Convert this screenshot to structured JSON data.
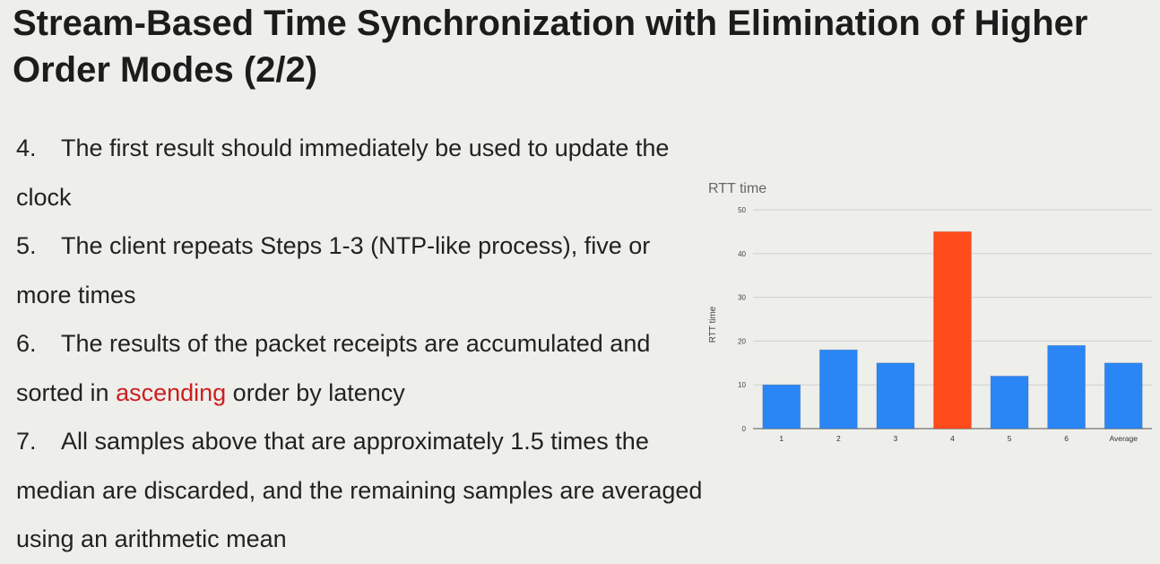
{
  "slide": {
    "title": "Stream-Based Time Synchronization with Elimination of Higher Order Modes (2/2)",
    "points": [
      {
        "num": "4.",
        "text": "The first result should immediately be used to update the clock"
      },
      {
        "num": "5.",
        "text": "The client repeats Steps 1-3 (NTP-like process), five or more times"
      },
      {
        "num": "6.",
        "text_before": "The results of the packet receipts are accumulated and sorted in ",
        "highlight": "ascending",
        "text_after": " order by latency"
      },
      {
        "num": "7.",
        "text": "All samples above that are approximately 1.5 times the median are discarded, and the remaining samples are averaged using an arithmetic mean"
      }
    ],
    "colors": {
      "highlight": "#cc1f1f",
      "background": "#eeeeea"
    }
  },
  "chart_data": {
    "type": "bar",
    "title": "RTT time",
    "ylabel": "RTT time",
    "xlabel": "",
    "categories": [
      "1",
      "2",
      "3",
      "4",
      "5",
      "6",
      "Average"
    ],
    "values": [
      10,
      18,
      15,
      45,
      12,
      19,
      15
    ],
    "ylim": [
      0,
      50
    ],
    "yticks": [
      0,
      10,
      20,
      30,
      40,
      50
    ],
    "grid": true,
    "bar_colors": [
      "#2b86f5",
      "#2b86f5",
      "#2b86f5",
      "#ff4a1c",
      "#2b86f5",
      "#2b86f5",
      "#2b86f5"
    ]
  }
}
